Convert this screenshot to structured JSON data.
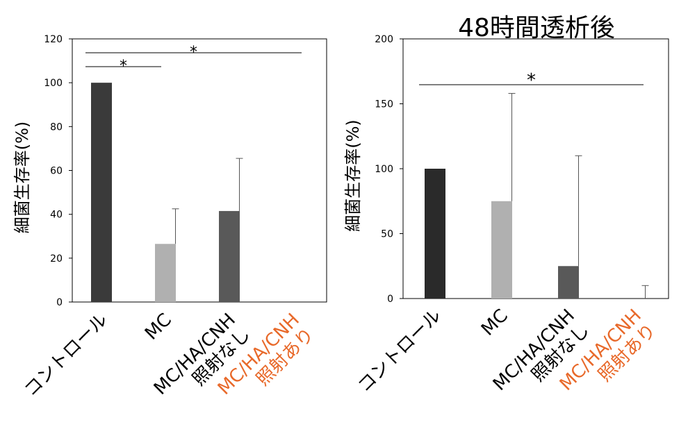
{
  "colors": {
    "orange_label": "#e8692a",
    "axis": "#000000"
  },
  "chart_data": [
    {
      "type": "bar",
      "title": "",
      "xlabel": "",
      "ylabel": "細菌生存率(%)",
      "ylim": [
        0,
        120
      ],
      "yticks": [
        0,
        20,
        40,
        60,
        80,
        100,
        120
      ],
      "categories": [
        {
          "lines": [
            "コントロール"
          ],
          "color": "#000000"
        },
        {
          "lines": [
            "MC"
          ],
          "color": "#000000"
        },
        {
          "lines": [
            "MC/HA/CNH",
            "照射なし"
          ],
          "color": "#000000"
        },
        {
          "lines": [
            "MC/HA/CNH",
            "照射あり"
          ],
          "color": "#e8692a"
        }
      ],
      "values": [
        100,
        26.5,
        41.5,
        0
      ],
      "errors": [
        0,
        16,
        24,
        0
      ],
      "bar_colors": [
        "#3a3a3a",
        "#b0b0b0",
        "#595959",
        "#595959"
      ],
      "significance": [
        {
          "from": 0,
          "to": 1,
          "label": "*"
        },
        {
          "from": 0,
          "to": 3,
          "label": "*"
        }
      ]
    },
    {
      "type": "bar",
      "title": "48時間透析後",
      "xlabel": "",
      "ylabel": "細菌生存率(%)",
      "ylim": [
        0,
        200
      ],
      "yticks": [
        0,
        50,
        100,
        150,
        200
      ],
      "categories": [
        {
          "lines": [
            "コントロール"
          ],
          "color": "#000000"
        },
        {
          "lines": [
            "MC"
          ],
          "color": "#000000"
        },
        {
          "lines": [
            "MC/HA/CNH",
            "照射なし"
          ],
          "color": "#000000"
        },
        {
          "lines": [
            "MC/HA/CNH",
            "照射あり"
          ],
          "color": "#e8692a"
        }
      ],
      "values": [
        100,
        75,
        25,
        0
      ],
      "errors": [
        0,
        83,
        85,
        10
      ],
      "bar_colors": [
        "#2a2a2a",
        "#b0b0b0",
        "#595959",
        "#595959"
      ],
      "significance": [
        {
          "from": 0,
          "to": 3,
          "label": "*"
        }
      ]
    }
  ]
}
